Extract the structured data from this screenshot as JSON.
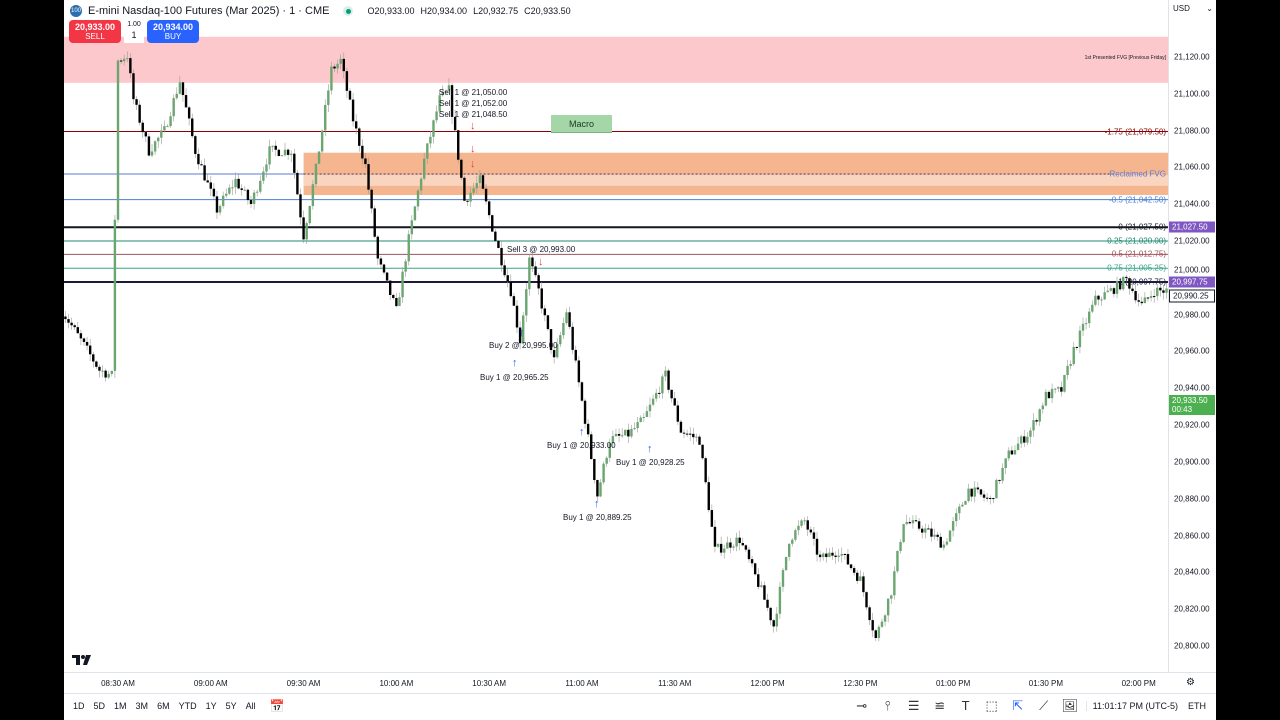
{
  "header": {
    "symbol_badge": "100",
    "title": "E-mini Nasdaq-100 Futures (Mar 2025) · 1 · CME",
    "open": "O20,933.00",
    "high": "H20,934.00",
    "low": "L20,932.75",
    "close": "C20,933.50",
    "market_status_color": "#089981"
  },
  "trade_panel": {
    "sell_price": "20,933.00",
    "sell_label": "SELL",
    "buy_price": "20,934.00",
    "buy_label": "BUY",
    "qty_step": "1.00",
    "qty": "1",
    "sell_color": "#f23645",
    "buy_color": "#2962ff"
  },
  "price_axis": {
    "currency": "USD",
    "labels": [
      21120,
      21100,
      21080,
      21060,
      21040,
      21020,
      21000,
      20980,
      20960,
      20940,
      20920,
      20900,
      20880,
      20860,
      20840,
      20820,
      20800
    ],
    "label_text": [
      "21,120.00",
      "21,100.00",
      "21,080.00",
      "21,060.00",
      "21,040.00",
      "21,020.00",
      "21,000.00",
      "20,980.00",
      "20,960.00",
      "20,940.00",
      "20,920.00",
      "20,900.00",
      "20,880.00",
      "20,860.00",
      "20,840.00",
      "20,820.00",
      "20,800.00"
    ],
    "tags": [
      {
        "price": 21027.5,
        "text": "21,027.50",
        "color": "#7e57c2"
      },
      {
        "price": 20997.75,
        "text": "20,997.75",
        "color": "#7e57c2"
      },
      {
        "price": 20990.25,
        "text": "20,990.25",
        "color": "#ffffff"
      },
      {
        "price": 20933.5,
        "text": "20,933.50",
        "countdown": "00:43",
        "color": "#4caf50"
      }
    ]
  },
  "time_axis": {
    "labels": [
      {
        "t": "08:30",
        "text": "08:30 AM"
      },
      {
        "t": "09:00",
        "text": "09:00 AM"
      },
      {
        "t": "09:30",
        "text": "09:30 AM"
      },
      {
        "t": "10:00",
        "text": "10:00 AM"
      },
      {
        "t": "10:30",
        "text": "10:30 AM"
      },
      {
        "t": "11:00",
        "text": "11:00 AM"
      },
      {
        "t": "11:30",
        "text": "11:30 AM"
      },
      {
        "t": "12:00",
        "text": "12:00 PM"
      },
      {
        "t": "12:30",
        "text": "12:30 PM"
      },
      {
        "t": "13:00",
        "text": "01:00 PM"
      },
      {
        "t": "13:30",
        "text": "01:30 PM"
      },
      {
        "t": "14:00",
        "text": "02:00 PM"
      }
    ]
  },
  "chart_data": {
    "type": "candlestick",
    "interval": "1 minute",
    "ylim": [
      20790,
      21140
    ],
    "up_color": "#6ba56f",
    "down_color": "#000000",
    "price_path": [
      [
        "08:12",
        20982
      ],
      [
        "08:24",
        20950
      ],
      [
        "08:28",
        20947
      ],
      [
        "08:30",
        21118
      ],
      [
        "08:33",
        21121
      ],
      [
        "08:35",
        21097
      ],
      [
        "08:40",
        21069
      ],
      [
        "08:45",
        21080
      ],
      [
        "08:50",
        21107
      ],
      [
        "08:55",
        21069
      ],
      [
        "09:02",
        21037
      ],
      [
        "09:08",
        21053
      ],
      [
        "09:13",
        21040
      ],
      [
        "09:19",
        21069
      ],
      [
        "09:26",
        21069
      ],
      [
        "09:30",
        21023
      ],
      [
        "09:34",
        21059
      ],
      [
        "09:39",
        21113
      ],
      [
        "09:42",
        21118
      ],
      [
        "09:46",
        21086
      ],
      [
        "09:50",
        21061
      ],
      [
        "09:54",
        21010
      ],
      [
        "10:00",
        20982
      ],
      [
        "10:04",
        21021
      ],
      [
        "10:09",
        21064
      ],
      [
        "10:14",
        21097
      ],
      [
        "10:17",
        21102
      ],
      [
        "10:22",
        21042
      ],
      [
        "10:27",
        21053
      ],
      [
        "10:32",
        21021
      ],
      [
        "10:37",
        20993
      ],
      [
        "10:40",
        20966
      ],
      [
        "10:43",
        21010
      ],
      [
        "10:46",
        20993
      ],
      [
        "10:51",
        20955
      ],
      [
        "10:55",
        20982
      ],
      [
        "11:01",
        20923
      ],
      [
        "11:05",
        20882
      ],
      [
        "11:09",
        20912
      ],
      [
        "11:15",
        20915
      ],
      [
        "11:20",
        20923
      ],
      [
        "11:27",
        20947
      ],
      [
        "11:32",
        20917
      ],
      [
        "11:38",
        20912
      ],
      [
        "11:43",
        20852
      ],
      [
        "11:51",
        20858
      ],
      [
        "11:58",
        20830
      ],
      [
        "12:02",
        20811
      ],
      [
        "12:07",
        20858
      ],
      [
        "12:12",
        20868
      ],
      [
        "12:17",
        20847
      ],
      [
        "12:23",
        20852
      ],
      [
        "12:30",
        20836
      ],
      [
        "12:35",
        20804
      ],
      [
        "12:40",
        20830
      ],
      [
        "12:44",
        20868
      ],
      [
        "12:51",
        20863
      ],
      [
        "12:57",
        20855
      ],
      [
        "13:05",
        20885
      ],
      [
        "13:12",
        20879
      ],
      [
        "13:18",
        20904
      ],
      [
        "13:25",
        20917
      ],
      [
        "13:30",
        20936
      ],
      [
        "13:35",
        20939
      ],
      [
        "13:39",
        20961
      ],
      [
        "13:46",
        20988
      ],
      [
        "13:51",
        20993
      ],
      [
        "13:56",
        20999
      ],
      [
        "14:01",
        20985
      ],
      [
        "14:05",
        20993
      ],
      [
        "14:10",
        20993
      ]
    ],
    "zones": [
      {
        "name": "1st Presented FVG [Previous Friday]",
        "top": 21131,
        "bottom": 21106,
        "color": "#fcc8cc",
        "from": "start"
      },
      {
        "name": "Reclaimed FVG",
        "top": 21068,
        "bottom": 21045,
        "color": "#f5b58f",
        "inner_color": "#f9d4bf",
        "inner_top": 21056,
        "inner_bottom": 21050,
        "from": "09:30"
      }
    ],
    "levels": [
      {
        "label": "-1.75 (21,079.50)",
        "price": 21079.5,
        "color": "#8b0000"
      },
      {
        "label": "Reclaimed FVG",
        "price": 21056.4,
        "color": "#5b7bd5",
        "dotted_from": "09:30"
      },
      {
        "label": "-0.5 (21,042.50)",
        "price": 21042.5,
        "color": "#4a7fd6"
      },
      {
        "label": "0 (21,027.50)",
        "price": 21027.5,
        "color": "#131722",
        "thick": true
      },
      {
        "label": "0.25 (21,020.00)",
        "price": 21020,
        "color": "#1f8a70"
      },
      {
        "label": "0.5 (21,012.75)",
        "price": 21012.75,
        "color": "#a0525a"
      },
      {
        "label": "0.75 (21,005.25)",
        "price": 21005.25,
        "color": "#3aa38a"
      },
      {
        "label": "1 (20,997.75)",
        "price": 20997.75,
        "color": "#1a1a3a",
        "thick": true
      }
    ]
  },
  "annotations": {
    "macro": "Macro",
    "sells": [
      "Sell 1 @ 21,050.00",
      "Sell 1 @ 21,052.00",
      "Sell 1 @ 21,048.50",
      "Sell 3 @ 20,993.00"
    ],
    "buys": [
      "Buy 2 @ 20,995.00",
      "Buy 1 @ 20,965.25",
      "Buy 1 @ 20,933.00",
      "Buy 1 @ 20,928.25",
      "Buy 1 @ 20,889.25"
    ],
    "sell_arrow": "↓",
    "buy_arrow": "↑",
    "sell_color": "#f23645",
    "buy_color": "#2962ff"
  },
  "bottom_bar": {
    "ranges": [
      "1D",
      "5D",
      "1M",
      "3M",
      "6M",
      "YTD",
      "1Y",
      "5Y",
      "All"
    ],
    "clock": "11:01:17 PM (UTC-5)",
    "session": "ETH",
    "tools": [
      {
        "icon": "horizontal-ray-icon",
        "glyph": "⊸"
      },
      {
        "icon": "vertical-line-icon",
        "glyph": "⫯"
      },
      {
        "icon": "parallel-lines-icon",
        "glyph": "☰"
      },
      {
        "icon": "fib-icon",
        "glyph": "≌"
      },
      {
        "icon": "text-icon",
        "glyph": "T"
      },
      {
        "icon": "rectangle-icon",
        "glyph": "⬚"
      },
      {
        "icon": "cursor-icon",
        "glyph": "⇱"
      },
      {
        "icon": "trend-line-icon",
        "glyph": "⟋"
      },
      {
        "icon": "image-icon",
        "glyph": "🖼"
      }
    ]
  },
  "logo": "TV"
}
